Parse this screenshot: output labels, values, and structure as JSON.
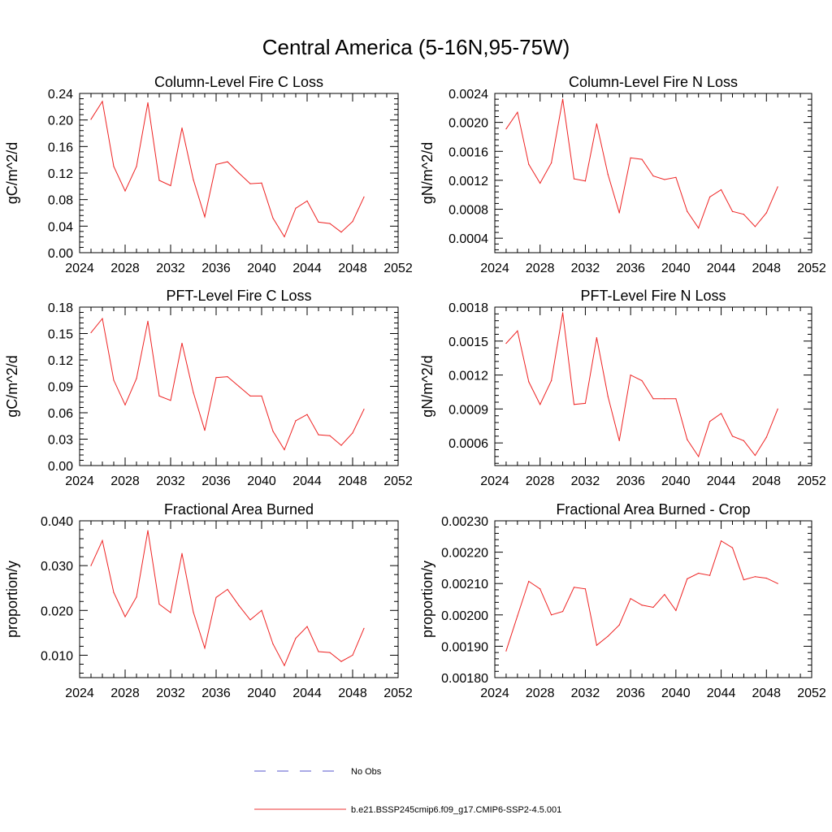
{
  "page_title": "Central America (5-16N,95-75W)",
  "legend": {
    "items": [
      {
        "label": "No Obs",
        "color": "#5555cc",
        "style": "dashed"
      },
      {
        "label": "b.e21.BSSP245cmip6.f09_g17.CMIP6-SSP2-4.5.001",
        "color": "#ee3333",
        "style": "solid"
      }
    ]
  },
  "colors": {
    "series": "#ee2222",
    "axis": "#000000"
  },
  "chart_data": [
    {
      "type": "line",
      "title": "Column-Level Fire C Loss",
      "ylabel": "gC/m^2/d",
      "xlim": [
        2024,
        2052
      ],
      "ylim": [
        0,
        0.24
      ],
      "xticks": [
        "2024",
        "2028",
        "2032",
        "2036",
        "2040",
        "2044",
        "2048",
        "2052"
      ],
      "yticks": [
        "0.00",
        "0.04",
        "0.08",
        "0.12",
        "0.16",
        "0.20",
        "0.24"
      ],
      "x": [
        2025,
        2026,
        2027,
        2028,
        2029,
        2030,
        2031,
        2032,
        2033,
        2034,
        2035,
        2036,
        2037,
        2038,
        2039,
        2040,
        2041,
        2042,
        2043,
        2044,
        2045,
        2046,
        2047,
        2048,
        2049
      ],
      "values": [
        0.201,
        0.228,
        0.13,
        0.093,
        0.13,
        0.226,
        0.109,
        0.101,
        0.188,
        0.11,
        0.054,
        0.133,
        0.137,
        0.12,
        0.104,
        0.105,
        0.052,
        0.024,
        0.067,
        0.078,
        0.046,
        0.044,
        0.031,
        0.047,
        0.084
      ]
    },
    {
      "type": "line",
      "title": "Column-Level Fire N Loss",
      "ylabel": "gN/m^2/d",
      "xlim": [
        2024,
        2052
      ],
      "ylim": [
        0.0002,
        0.0024
      ],
      "xticks": [
        "2024",
        "2028",
        "2032",
        "2036",
        "2040",
        "2044",
        "2048",
        "2052"
      ],
      "yticks": [
        "0.0004",
        "0.0008",
        "0.0012",
        "0.0016",
        "0.0020",
        "0.0024"
      ],
      "x": [
        2025,
        2026,
        2027,
        2028,
        2029,
        2030,
        2031,
        2032,
        2033,
        2034,
        2035,
        2036,
        2037,
        2038,
        2039,
        2040,
        2041,
        2042,
        2043,
        2044,
        2045,
        2046,
        2047,
        2048,
        2049
      ],
      "values": [
        0.00191,
        0.00214,
        0.00142,
        0.00116,
        0.00144,
        0.00232,
        0.00122,
        0.00119,
        0.00198,
        0.00128,
        0.00075,
        0.00151,
        0.00149,
        0.00126,
        0.00121,
        0.00124,
        0.00077,
        0.00054,
        0.00097,
        0.00107,
        0.00077,
        0.00073,
        0.00056,
        0.00075,
        0.00111
      ]
    },
    {
      "type": "line",
      "title": "PFT-Level Fire C Loss",
      "ylabel": "gC/m^2/d",
      "xlim": [
        2024,
        2052
      ],
      "ylim": [
        0,
        0.18
      ],
      "xticks": [
        "2024",
        "2028",
        "2032",
        "2036",
        "2040",
        "2044",
        "2048",
        "2052"
      ],
      "yticks": [
        "0.00",
        "0.03",
        "0.06",
        "0.09",
        "0.12",
        "0.15",
        "0.18"
      ],
      "x": [
        2025,
        2026,
        2027,
        2028,
        2029,
        2030,
        2031,
        2032,
        2033,
        2034,
        2035,
        2036,
        2037,
        2038,
        2039,
        2040,
        2041,
        2042,
        2043,
        2044,
        2045,
        2046,
        2047,
        2048,
        2049
      ],
      "values": [
        0.151,
        0.167,
        0.097,
        0.069,
        0.099,
        0.164,
        0.079,
        0.074,
        0.139,
        0.083,
        0.04,
        0.1,
        0.101,
        0.09,
        0.079,
        0.079,
        0.039,
        0.018,
        0.051,
        0.058,
        0.035,
        0.034,
        0.023,
        0.037,
        0.064
      ]
    },
    {
      "type": "line",
      "title": "PFT-Level Fire N Loss",
      "ylabel": "gN/m^2/d",
      "xlim": [
        2024,
        2052
      ],
      "ylim": [
        0.0004,
        0.0018
      ],
      "xticks": [
        "2024",
        "2028",
        "2032",
        "2036",
        "2040",
        "2044",
        "2048",
        "2052"
      ],
      "yticks": [
        "0.0006",
        "0.0009",
        "0.0012",
        "0.0015",
        "0.0018"
      ],
      "x": [
        2025,
        2026,
        2027,
        2028,
        2029,
        2030,
        2031,
        2032,
        2033,
        2034,
        2035,
        2036,
        2037,
        2038,
        2039,
        2040,
        2041,
        2042,
        2043,
        2044,
        2045,
        2046,
        2047,
        2048,
        2049
      ],
      "values": [
        0.00148,
        0.00159,
        0.00114,
        0.00094,
        0.00115,
        0.00175,
        0.00094,
        0.00095,
        0.00153,
        0.00101,
        0.00062,
        0.0012,
        0.00115,
        0.00099,
        0.00099,
        0.00099,
        0.00063,
        0.00048,
        0.00079,
        0.00086,
        0.00066,
        0.00062,
        0.00049,
        0.00065,
        0.0009
      ]
    },
    {
      "type": "line",
      "title": "Fractional Area Burned",
      "ylabel": "proportion/y",
      "xlim": [
        2024,
        2052
      ],
      "ylim": [
        0.005,
        0.04
      ],
      "xticks": [
        "2024",
        "2028",
        "2032",
        "2036",
        "2040",
        "2044",
        "2048",
        "2052"
      ],
      "yticks": [
        "0.010",
        "0.020",
        "0.030",
        "0.040"
      ],
      "x": [
        2025,
        2026,
        2027,
        2028,
        2029,
        2030,
        2031,
        2032,
        2033,
        2034,
        2035,
        2036,
        2037,
        2038,
        2039,
        2040,
        2041,
        2042,
        2043,
        2044,
        2045,
        2046,
        2047,
        2048,
        2049
      ],
      "values": [
        0.03,
        0.0356,
        0.024,
        0.0186,
        0.023,
        0.0378,
        0.0214,
        0.0195,
        0.0327,
        0.0196,
        0.0116,
        0.0229,
        0.0247,
        0.0211,
        0.0179,
        0.02,
        0.0125,
        0.0077,
        0.0138,
        0.0164,
        0.0108,
        0.0106,
        0.0086,
        0.01,
        0.016
      ]
    },
    {
      "type": "line",
      "title": "Fractional Area Burned - Crop",
      "ylabel": "proportion/y",
      "xlim": [
        2024,
        2052
      ],
      "ylim": [
        0.0018,
        0.0023
      ],
      "xticks": [
        "2024",
        "2028",
        "2032",
        "2036",
        "2040",
        "2044",
        "2048",
        "2052"
      ],
      "yticks": [
        "0.00180",
        "0.00190",
        "0.00200",
        "0.00210",
        "0.00220",
        "0.00230"
      ],
      "x": [
        2025,
        2026,
        2027,
        2028,
        2029,
        2030,
        2031,
        2032,
        2033,
        2034,
        2035,
        2036,
        2037,
        2038,
        2039,
        2040,
        2041,
        2042,
        2043,
        2044,
        2045,
        2046,
        2047,
        2048,
        2049
      ],
      "values": [
        0.001885,
        0.001997,
        0.002107,
        0.002083,
        0.002,
        0.002011,
        0.002088,
        0.002083,
        0.001903,
        0.001932,
        0.001968,
        0.002052,
        0.002031,
        0.002024,
        0.002065,
        0.002014,
        0.002115,
        0.002133,
        0.002126,
        0.002236,
        0.002214,
        0.002112,
        0.002122,
        0.002117,
        0.0021
      ]
    }
  ]
}
